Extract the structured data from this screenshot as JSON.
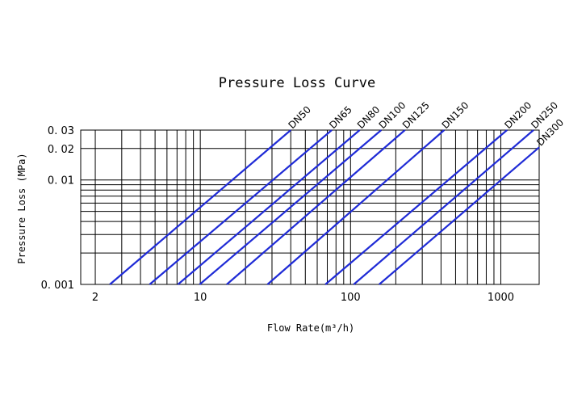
{
  "chart_data": {
    "type": "line",
    "title": "Pressure Loss Curve",
    "xlabel": "Flow Rate(m³/h)",
    "ylabel": "Pressure Loss (MPa)",
    "x_scale": "log",
    "y_scale": "log",
    "xlim": [
      1.6,
      1800
    ],
    "ylim": [
      0.001,
      0.03
    ],
    "x_ticks": [
      {
        "value": 2,
        "label": "2"
      },
      {
        "value": 10,
        "label": "10"
      },
      {
        "value": 100,
        "label": "100"
      },
      {
        "value": 1000,
        "label": "1000"
      }
    ],
    "y_ticks": [
      {
        "value": 0.001,
        "label": "0. 001"
      },
      {
        "value": 0.01,
        "label": "0. 01"
      },
      {
        "value": 0.02,
        "label": "0. 02"
      },
      {
        "value": 0.03,
        "label": "0. 03"
      }
    ],
    "x_grid": [
      2,
      3,
      4,
      5,
      6,
      7,
      8,
      9,
      10,
      20,
      30,
      40,
      50,
      60,
      70,
      80,
      90,
      100,
      200,
      300,
      400,
      500,
      600,
      700,
      800,
      900,
      1000
    ],
    "y_grid": [
      0.001,
      0.002,
      0.003,
      0.004,
      0.005,
      0.006,
      0.007,
      0.008,
      0.009,
      0.01,
      0.02,
      0.03
    ],
    "grid": true,
    "line_color": "#1f2bd6",
    "series": [
      {
        "name": "DN50",
        "x": [
          2.5,
          40
        ],
        "y": [
          0.001,
          0.03
        ]
      },
      {
        "name": "DN65",
        "x": [
          4.6,
          75
        ],
        "y": [
          0.001,
          0.03
        ]
      },
      {
        "name": "DN80",
        "x": [
          7.1,
          115
        ],
        "y": [
          0.001,
          0.03
        ]
      },
      {
        "name": "DN100",
        "x": [
          9.9,
          160
        ],
        "y": [
          0.001,
          0.03
        ]
      },
      {
        "name": "DN125",
        "x": [
          15,
          230
        ],
        "y": [
          0.001,
          0.03
        ]
      },
      {
        "name": "DN150",
        "x": [
          28,
          420
        ],
        "y": [
          0.001,
          0.03
        ]
      },
      {
        "name": "DN200",
        "x": [
          68,
          1100
        ],
        "y": [
          0.001,
          0.03
        ]
      },
      {
        "name": "DN250",
        "x": [
          105,
          1650
        ],
        "y": [
          0.001,
          0.03
        ]
      },
      {
        "name": "DN300",
        "x": [
          155,
          2450
        ],
        "y": [
          0.001,
          0.03
        ]
      }
    ]
  }
}
